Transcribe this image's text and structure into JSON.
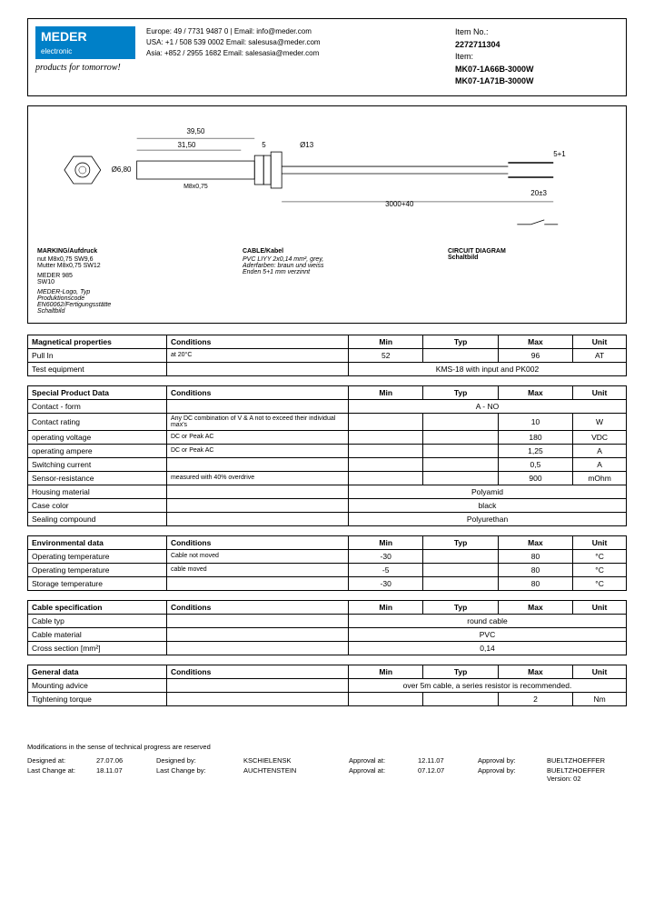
{
  "header": {
    "logo_main": "MEDER",
    "logo_sub": "electronic",
    "tagline": "products for tomorrow!",
    "contacts": [
      "Europe:  49 / 7731 9487 0 | Email: info@meder.com",
      "USA:  +1 / 508 539 0002   Email: salesusa@meder.com",
      "Asia:  +852 / 2955 1682   Email: salesasia@meder.com"
    ],
    "item_no_label": "Item No.:",
    "item_no": "2272711304",
    "item_label": "Item:",
    "item1": "MK07-1A66B-3000W",
    "item2": "MK07-1A71B-3000W"
  },
  "diagram": {
    "dims": {
      "len1": "39,50",
      "len2": "31,50",
      "gap": "5",
      "dia1": "Ø13",
      "dia2": "Ø6,80",
      "cable": "3000+40",
      "tol": "20±3",
      "end": "5+1",
      "thread": "M8x0,75"
    },
    "notes": {
      "marking_t": "MARKING/Aufdruck",
      "marking": "MEDER-Logo, Typ\nProduktionscode\nEN60062/Fertigungsstätte\nSchaltbild",
      "cable_t": "CABLE/Kabel",
      "cable": "PVC LIYY 2x0,14 mm², grey,\nAderfarben: braun und weiss\nEnden 5+1 mm verzinnt",
      "circuit_t": "CIRCUIT DIAGRAM\nSchaltbild",
      "nut1": "nut M8x0,75 SW9,6\nMutter M8x0,75 SW12",
      "nut2": "MEDER 985\nSW10"
    }
  },
  "tables": [
    {
      "title": "Magnetical properties",
      "rows": [
        {
          "p": "Pull In",
          "c": "at 20°C",
          "min": "52",
          "typ": "",
          "max": "96",
          "u": "AT"
        },
        {
          "p": "Test equipment",
          "c": "",
          "span": "KMS-18 with input and PK002"
        }
      ]
    },
    {
      "title": "Special Product Data",
      "rows": [
        {
          "p": "Contact - form",
          "c": "",
          "span": "A - NO"
        },
        {
          "p": "Contact rating",
          "c": "Any DC combination of V & A not to exceed their individual max's",
          "min": "",
          "typ": "",
          "max": "10",
          "u": "W"
        },
        {
          "p": "operating voltage",
          "c": "DC or Peak AC",
          "min": "",
          "typ": "",
          "max": "180",
          "u": "VDC"
        },
        {
          "p": "operating ampere",
          "c": "DC or Peak AC",
          "min": "",
          "typ": "",
          "max": "1,25",
          "u": "A"
        },
        {
          "p": "Switching current",
          "c": "",
          "min": "",
          "typ": "",
          "max": "0,5",
          "u": "A"
        },
        {
          "p": "Sensor-resistance",
          "c": "measured with 40% overdrive",
          "min": "",
          "typ": "",
          "max": "900",
          "u": "mOhm"
        },
        {
          "p": "Housing material",
          "c": "",
          "span": "Polyamid"
        },
        {
          "p": "Case color",
          "c": "",
          "span": "black"
        },
        {
          "p": "Sealing compound",
          "c": "",
          "span": "Polyurethan"
        }
      ]
    },
    {
      "title": "Environmental data",
      "rows": [
        {
          "p": "Operating temperature",
          "c": "Cable not moved",
          "min": "-30",
          "typ": "",
          "max": "80",
          "u": "°C"
        },
        {
          "p": "Operating temperature",
          "c": "cable moved",
          "min": "-5",
          "typ": "",
          "max": "80",
          "u": "°C"
        },
        {
          "p": "Storage temperature",
          "c": "",
          "min": "-30",
          "typ": "",
          "max": "80",
          "u": "°C"
        }
      ]
    },
    {
      "title": "Cable specification",
      "rows": [
        {
          "p": "Cable typ",
          "c": "",
          "span": "round cable"
        },
        {
          "p": "Cable material",
          "c": "",
          "span": "PVC"
        },
        {
          "p": "Cross section [mm²]",
          "c": "",
          "span": "0,14"
        }
      ]
    },
    {
      "title": "General data",
      "rows": [
        {
          "p": "Mounting advice",
          "c": "",
          "span": "over 5m cable, a series resistor is recommended."
        },
        {
          "p": "Tightening torque",
          "c": "",
          "min": "",
          "typ": "",
          "max": "2",
          "u": "Nm"
        }
      ]
    }
  ],
  "footer": {
    "note": "Modifications in the sense of technical progress are reserved",
    "rows": [
      [
        "Designed at:",
        "27.07.06",
        "Designed by:",
        "KSCHIELENSK",
        "Approval at:",
        "12.11.07",
        "Approval by:",
        "BUELTZHOEFFER"
      ],
      [
        "Last Change at:",
        "18.11.07",
        "Last Change by:",
        "AUCHTENSTEIN",
        "Approval at:",
        "07.12.07",
        "Approval by:",
        "BUELTZHOEFFER   Version:   02"
      ]
    ]
  },
  "headers": {
    "cond": "Conditions",
    "min": "Min",
    "typ": "Typ",
    "max": "Max",
    "unit": "Unit"
  }
}
